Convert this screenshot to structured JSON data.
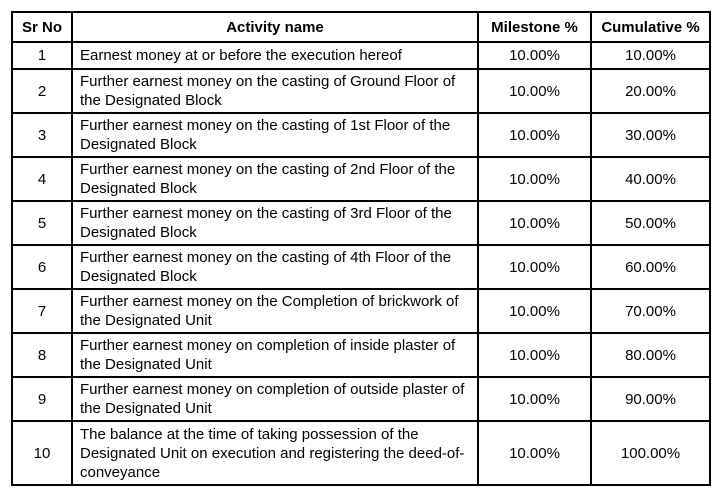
{
  "table": {
    "columns": [
      {
        "key": "sr",
        "label": "Sr No"
      },
      {
        "key": "activity",
        "label": "Activity name"
      },
      {
        "key": "milestone",
        "label": "Milestone %"
      },
      {
        "key": "cumulative",
        "label": "Cumulative %"
      }
    ],
    "rows": [
      {
        "sr": "1",
        "activity": "Earnest money at or before the execution hereof",
        "milestone": "10.00%",
        "cumulative": "10.00%"
      },
      {
        "sr": "2",
        "activity": "Further earnest money on the casting of Ground Floor of the Designated Block",
        "milestone": "10.00%",
        "cumulative": "20.00%"
      },
      {
        "sr": "3",
        "activity": "Further earnest money on the casting of 1st Floor of the Designated Block",
        "milestone": "10.00%",
        "cumulative": "30.00%"
      },
      {
        "sr": "4",
        "activity": "Further earnest money on the casting of 2nd Floor of the Designated Block",
        "milestone": "10.00%",
        "cumulative": "40.00%"
      },
      {
        "sr": "5",
        "activity": "Further earnest money on the casting of 3rd Floor of the Designated Block",
        "milestone": "10.00%",
        "cumulative": "50.00%"
      },
      {
        "sr": "6",
        "activity": "Further earnest money on the casting of 4th Floor of the Designated Block",
        "milestone": "10.00%",
        "cumulative": "60.00%"
      },
      {
        "sr": "7",
        "activity": "Further earnest money on the Completion of brickwork of the Designated Unit",
        "milestone": "10.00%",
        "cumulative": "70.00%"
      },
      {
        "sr": "8",
        "activity": "Further earnest money on completion of inside plaster of the Designated Unit",
        "milestone": "10.00%",
        "cumulative": "80.00%"
      },
      {
        "sr": "9",
        "activity": "Further earnest money on completion of outside plaster of the Designated Unit",
        "milestone": "10.00%",
        "cumulative": "90.00%"
      },
      {
        "sr": "10",
        "activity": "The balance at the time of taking possession of the Designated Unit on execution and registering the deed-of-conveyance",
        "milestone": "10.00%",
        "cumulative": "100.00%"
      }
    ],
    "colors": {
      "border": "#000000",
      "text": "#000000",
      "background": "#ffffff"
    }
  }
}
